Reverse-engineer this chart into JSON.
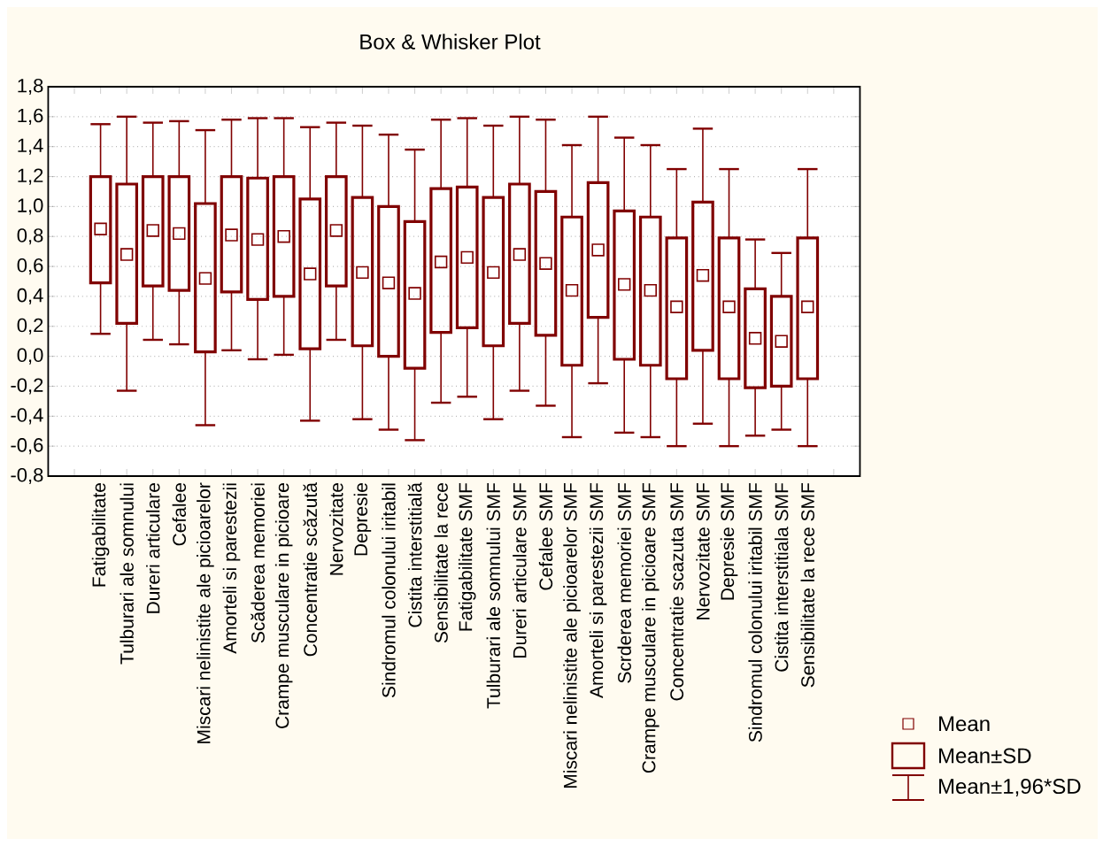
{
  "chart_data": {
    "type": "box",
    "title": "Box & Whisker Plot",
    "categories": [
      "Fatigabilitate",
      "Tulburari ale somnului",
      "Dureri articulare",
      "Cefalee",
      "Miscari nelinistite ale picioarelor",
      "Amorteli si parestezii",
      "Scăderea memoriei",
      "Crampe musculare in picioare",
      "Concentratie scăzută",
      "Nervozitate",
      "Depresie",
      "Sindromul colonului iritabil",
      "Cistita interstitială",
      "Sensibilitate la rece",
      "Fatigabilitate SMF",
      "Tulburari ale somnului SMF",
      "Dureri articulare SMF",
      "Cefalee SMF",
      "Miscari nelinistite ale picioarelor SMF",
      "Amorteli si parestezii SMF",
      "Scrderea memoriei SMF",
      "Crampe musculare in picioare SMF",
      "Concentratie scazuta SMF",
      "Nervozitate SMF",
      "Depresie SMF",
      "Sindromul colonului iritabil SMF",
      "Cistita interstitiala SMF",
      "Sensibilitate la rece SMF"
    ],
    "color": "#800000",
    "marker": "square",
    "boxes": [
      {
        "low": 0.15,
        "q1": 0.49,
        "q3": 1.2,
        "high": 1.55,
        "mean": 0.85
      },
      {
        "low": -0.23,
        "q1": 0.22,
        "q3": 1.15,
        "high": 1.6,
        "mean": 0.68
      },
      {
        "low": 0.11,
        "q1": 0.47,
        "q3": 1.2,
        "high": 1.56,
        "mean": 0.84
      },
      {
        "low": 0.08,
        "q1": 0.44,
        "q3": 1.2,
        "high": 1.57,
        "mean": 0.82
      },
      {
        "low": -0.46,
        "q1": 0.03,
        "q3": 1.02,
        "high": 1.51,
        "mean": 0.52
      },
      {
        "low": 0.04,
        "q1": 0.43,
        "q3": 1.2,
        "high": 1.58,
        "mean": 0.81
      },
      {
        "low": -0.02,
        "q1": 0.38,
        "q3": 1.19,
        "high": 1.59,
        "mean": 0.78
      },
      {
        "low": 0.01,
        "q1": 0.4,
        "q3": 1.2,
        "high": 1.59,
        "mean": 0.8
      },
      {
        "low": -0.43,
        "q1": 0.05,
        "q3": 1.05,
        "high": 1.53,
        "mean": 0.55
      },
      {
        "low": 0.11,
        "q1": 0.47,
        "q3": 1.2,
        "high": 1.56,
        "mean": 0.84
      },
      {
        "low": -0.42,
        "q1": 0.07,
        "q3": 1.06,
        "high": 1.54,
        "mean": 0.56
      },
      {
        "low": -0.49,
        "q1": 0.0,
        "q3": 1.0,
        "high": 1.48,
        "mean": 0.49
      },
      {
        "low": -0.56,
        "q1": -0.08,
        "q3": 0.9,
        "high": 1.38,
        "mean": 0.42
      },
      {
        "low": -0.31,
        "q1": 0.16,
        "q3": 1.12,
        "high": 1.58,
        "mean": 0.63
      },
      {
        "low": -0.27,
        "q1": 0.19,
        "q3": 1.13,
        "high": 1.59,
        "mean": 0.66
      },
      {
        "low": -0.42,
        "q1": 0.07,
        "q3": 1.06,
        "high": 1.54,
        "mean": 0.56
      },
      {
        "low": -0.23,
        "q1": 0.22,
        "q3": 1.15,
        "high": 1.6,
        "mean": 0.68
      },
      {
        "low": -0.33,
        "q1": 0.14,
        "q3": 1.1,
        "high": 1.58,
        "mean": 0.62
      },
      {
        "low": -0.54,
        "q1": -0.06,
        "q3": 0.93,
        "high": 1.41,
        "mean": 0.44
      },
      {
        "low": -0.18,
        "q1": 0.26,
        "q3": 1.16,
        "high": 1.6,
        "mean": 0.71
      },
      {
        "low": -0.51,
        "q1": -0.02,
        "q3": 0.97,
        "high": 1.46,
        "mean": 0.48
      },
      {
        "low": -0.54,
        "q1": -0.06,
        "q3": 0.93,
        "high": 1.41,
        "mean": 0.44
      },
      {
        "low": -0.6,
        "q1": -0.15,
        "q3": 0.79,
        "high": 1.25,
        "mean": 0.33
      },
      {
        "low": -0.45,
        "q1": 0.04,
        "q3": 1.03,
        "high": 1.52,
        "mean": 0.54
      },
      {
        "low": -0.6,
        "q1": -0.15,
        "q3": 0.79,
        "high": 1.25,
        "mean": 0.33
      },
      {
        "low": -0.53,
        "q1": -0.21,
        "q3": 0.45,
        "high": 0.78,
        "mean": 0.12
      },
      {
        "low": -0.49,
        "q1": -0.2,
        "q3": 0.4,
        "high": 0.69,
        "mean": 0.1
      },
      {
        "low": -0.6,
        "q1": -0.15,
        "q3": 0.79,
        "high": 1.25,
        "mean": 0.33
      }
    ],
    "ylim": [
      -0.8,
      1.8
    ],
    "yticks": [
      {
        "value": -0.8,
        "label": "-0,8"
      },
      {
        "value": -0.6,
        "label": "-0,6"
      },
      {
        "value": -0.4,
        "label": "-0,4"
      },
      {
        "value": -0.2,
        "label": "-0,2"
      },
      {
        "value": 0,
        "label": "0,0"
      },
      {
        "value": 0.2,
        "label": "0,2"
      },
      {
        "value": 0.4,
        "label": "0,4"
      },
      {
        "value": 0.6,
        "label": "0,6"
      },
      {
        "value": 0.8,
        "label": "0,8"
      },
      {
        "value": 1.0,
        "label": "1,0"
      },
      {
        "value": 1.2,
        "label": "1,2"
      },
      {
        "value": 1.4,
        "label": "1,4"
      },
      {
        "value": 1.6,
        "label": "1,6"
      },
      {
        "value": 1.8,
        "label": "1,8"
      }
    ],
    "grid": "y",
    "annotations": [
      "Mean",
      "Mean±SD",
      "Mean±1,96*SD"
    ]
  }
}
